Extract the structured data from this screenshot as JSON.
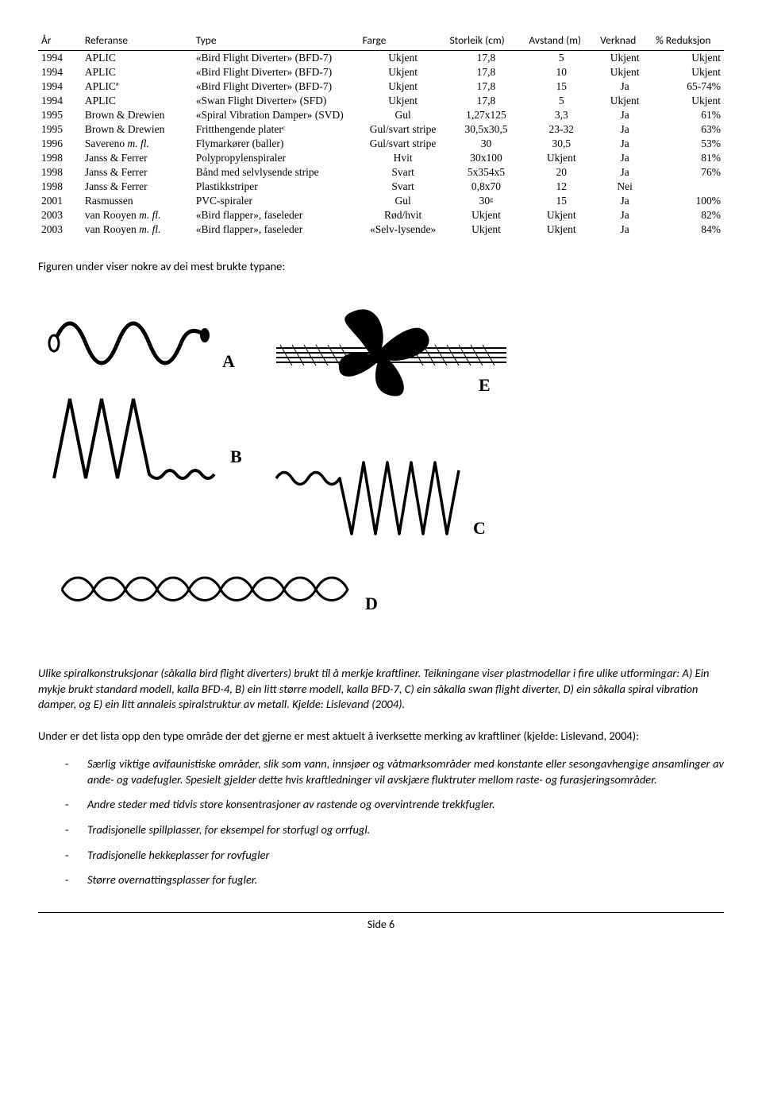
{
  "table": {
    "headers": [
      "År",
      "Referanse",
      "Type",
      "Farge",
      "Storleik (cm)",
      "Avstand (m)",
      "Verknad",
      "% Reduksjon"
    ],
    "col_widths": [
      "55",
      "140",
      "210",
      "110",
      "100",
      "90",
      "70",
      "90"
    ],
    "col_align": [
      "left",
      "left",
      "left",
      "center",
      "center",
      "center",
      "center",
      "right"
    ],
    "rows": [
      [
        "1994",
        "APLIC",
        "«Bird Flight Diverter» (BFD-7)",
        "Ukjent",
        "17,8",
        "5",
        "Ukjent",
        "Ukjent"
      ],
      [
        "1994",
        "APLIC",
        "«Bird Flight Diverter» (BFD-7)",
        "Ukjent",
        "17,8",
        "10",
        "Ukjent",
        "Ukjent"
      ],
      [
        "1994",
        "APLICª",
        "«Bird Flight Diverter» (BFD-7)",
        "Ukjent",
        "17,8",
        "15",
        "Ja",
        "65-74%"
      ],
      [
        "1994",
        "APLIC",
        "«Swan Flight Diverter» (SFD)",
        "Ukjent",
        "17,8",
        "5",
        "Ukjent",
        "Ukjent"
      ],
      [
        "1995",
        "Brown & Drewien",
        "«Spiral Vibration Damper» (SVD)",
        "Gul",
        "1,27x125",
        "3,3",
        "Ja",
        "61%"
      ],
      [
        "1995",
        "Brown & Drewien",
        "Fritthengende platerᶜ",
        "Gul/svart stripe",
        "30,5x30,5",
        "23-32",
        "Ja",
        "63%"
      ],
      [
        "1996",
        "Savereno m. fl.",
        "Flymarkører (baller)",
        "Gul/svart stripe",
        "30",
        "30,5",
        "Ja",
        "53%"
      ],
      [
        "1998",
        "Janss & Ferrer",
        "Polypropylenspiraler",
        "Hvit",
        "30x100",
        "Ukjent",
        "Ja",
        "81%"
      ],
      [
        "1998",
        "Janss & Ferrer",
        "Bånd med selvlysende stripe",
        "Svart",
        "5x354x5",
        "20",
        "Ja",
        "76%"
      ],
      [
        "1998",
        "Janss & Ferrer",
        "Plastikkstriper",
        "Svart",
        "0,8x70",
        "12",
        "Nei",
        ""
      ],
      [
        "2001",
        "Rasmussen",
        "PVC-spiraler",
        "Gul",
        "30ᵍ",
        "15",
        "Ja",
        "100%"
      ],
      [
        "2003",
        "van Rooyen m. fl.",
        "«Bird flapper», faseleder",
        "Rød/hvit",
        "Ukjent",
        "Ukjent",
        "Ja",
        "82%"
      ],
      [
        "2003",
        "van Rooyen m. fl.",
        "«Bird flapper», faseleder",
        "«Selv-lysende»",
        "Ukjent",
        "Ukjent",
        "Ja",
        "84%"
      ]
    ]
  },
  "caption1": "Figuren under viser nokre av dei mest brukte typane:",
  "figure": {
    "labels": {
      "A": "A",
      "B": "B",
      "C": "C",
      "D": "D",
      "E": "E"
    },
    "stroke": "#000000",
    "font": "Times New Roman"
  },
  "italic_block": "Ulike spiralkonstruksjonar (såkalla bird flight diverters) brukt til å merkje kraftliner. Teikningane viser plastmodellar i fire ulike utformingar: A) Ein mykje brukt standard modell, kalla BFD-4, B) ein litt større modell, kalla BFD-7, C) ein såkalla swan flight diverter, D) ein såkalla spiral vibration damper, og E) ein litt annaleis spiralstruktur av metall. Kjelde: Lislevand (2004).",
  "body_para": "Under er det lista opp den type område der det gjerne er mest aktuelt å iverksette merking av kraftliner (kjelde: Lislevand, 2004):",
  "bullets": [
    "Særlig viktige avifaunistiske områder, slik som vann, innsjøer og våtmarksområder med konstante eller sesongavhengige ansamlinger av ande- og vadefugler. Spesielt gjelder dette hvis kraftledninger vil avskjære fluktruter mellom raste- og furasjeringsområder.",
    "Andre steder med tidvis store konsentrasjoner av rastende og overvintrende trekkfugler.",
    "Tradisjonelle spillplasser, for eksempel for storfugl og orrfugl.",
    "Tradisjonelle hekkeplasser for rovfugler",
    "Større overnattingsplasser for fugler."
  ],
  "footer": "Side 6"
}
